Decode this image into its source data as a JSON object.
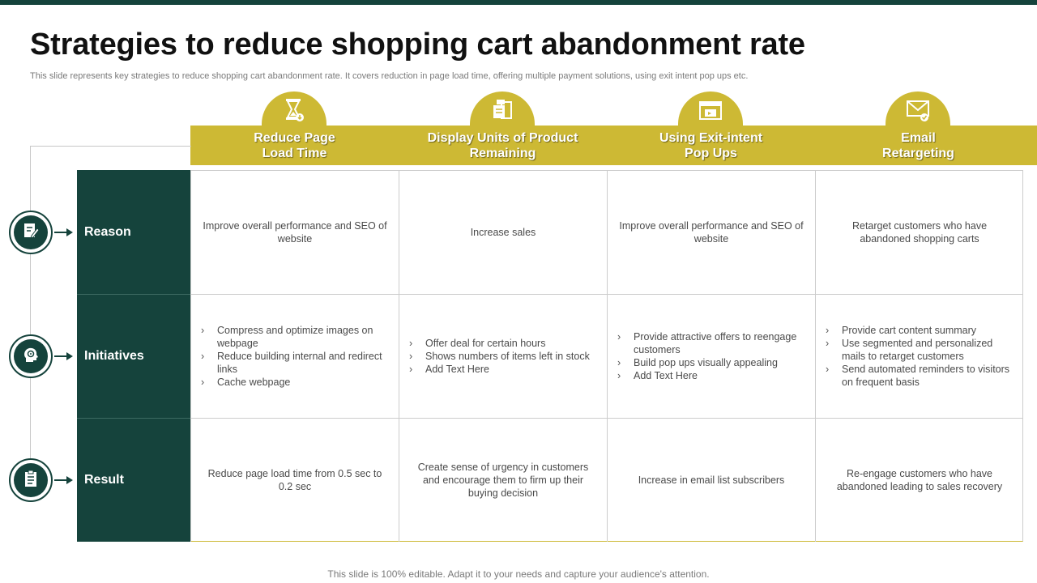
{
  "title": "Strategies to reduce shopping cart abandonment rate",
  "subtitle": "This slide represents key strategies to reduce shopping cart abandonment rate. It covers reduction in page load time, offering multiple payment solutions, using exit intent pop ups etc.",
  "colors": {
    "accent": "#cdb934",
    "dark": "#15433c"
  },
  "columns": [
    {
      "label": "Reduce Page\nLoad Time",
      "icon": "hourglass-icon"
    },
    {
      "label": "Display Units of Product\nRemaining",
      "icon": "product-boxes-icon"
    },
    {
      "label": "Using Exit-intent\nPop Ups",
      "icon": "browser-popup-icon"
    },
    {
      "label": "Email\nRetargeting",
      "icon": "email-icon"
    }
  ],
  "rows": [
    {
      "label": "Reason",
      "icon": "document-edit-icon"
    },
    {
      "label": "Initiatives",
      "icon": "head-gear-icon"
    },
    {
      "label": "Result",
      "icon": "clipboard-checklist-icon"
    }
  ],
  "reason": [
    "Improve  overall performance  and SEO of website",
    "Increase sales",
    "Improve  overall performance  and SEO of website",
    "Retarget customers who have abandoned  shopping carts"
  ],
  "initiatives": [
    [
      "Compress and optimize images on webpage",
      "Reduce building internal and redirect links",
      "Cache webpage"
    ],
    [
      "Offer deal for certain hours",
      "Shows numbers  of items left  in stock",
      "Add Text Here"
    ],
    [
      "Provide  attractive offers to reengage customers",
      "Build pop ups visually appealing",
      "Add Text Here"
    ],
    [
      "Provide  cart content summary",
      "Use segmented and personalized mails to retarget  customers",
      "Send automated reminders to visitors on frequent  basis"
    ]
  ],
  "result": [
    "Reduce page load time from 0.5 sec to 0.2 sec",
    "Create sense of urgency in customers and encourage them to firm up their buying decision",
    "Increase in email list subscribers",
    "Re-engage  customers who have abandoned  leading to sales recovery"
  ],
  "footer": "This slide is 100% editable. Adapt it to your needs and capture your audience's attention."
}
